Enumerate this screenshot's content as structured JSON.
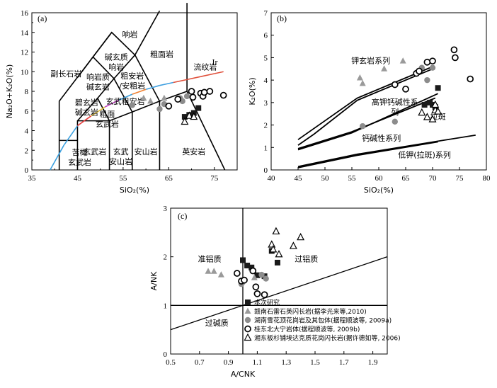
{
  "chart_data": [
    {
      "panel": "(a)",
      "type": "scatter",
      "xlabel": "SiO₂(%)",
      "ylabel": "Na₂O+K₂O(%)",
      "xlim": [
        35,
        80
      ],
      "ylim": [
        0,
        16
      ],
      "xticks": [
        "35",
        "45",
        "55",
        "65",
        "75"
      ],
      "yticks": [
        "0",
        "2",
        "4",
        "6",
        "8",
        "10",
        "12",
        "14",
        "16"
      ],
      "fields": [
        "响岩",
        "碱玄质响岩",
        "响岩质碱玄岩",
        "副长石岩",
        "粗面岩",
        "粗安岩/安粗岩",
        "流纹岩",
        "碧玄岩碱玄岩",
        "粗面玄武岩",
        "玄武粗安岩",
        "苦橄玄武岩",
        "玄武岩",
        "玄武安山岩",
        "安山岩",
        "英安岩"
      ],
      "line_label": "Ir",
      "series": [
        {
          "marker": "square",
          "points": [
            [
              68.5,
              5.4
            ],
            [
              69.5,
              5.6
            ],
            [
              70.2,
              5.5
            ],
            [
              70.5,
              5.8
            ],
            [
              71.5,
              6.3
            ]
          ]
        },
        {
          "marker": "triangle-gray",
          "points": [
            [
              59.5,
              7.3
            ],
            [
              61,
              7.0
            ],
            [
              64,
              7.3
            ]
          ]
        },
        {
          "marker": "circle-gray",
          "points": [
            [
              57,
              6.6
            ],
            [
              63,
              6.2
            ],
            [
              64,
              6.7
            ],
            [
              67.5,
              7.3
            ],
            [
              68,
              7.0
            ],
            [
              69,
              7.5
            ]
          ]
        },
        {
          "marker": "circle-open",
          "points": [
            [
              65,
              6.5
            ],
            [
              67,
              7.2
            ],
            [
              70,
              8.0
            ],
            [
              70.3,
              7.4
            ],
            [
              72,
              7.8
            ],
            [
              72.5,
              7.5
            ],
            [
              72.8,
              7.9
            ],
            [
              74,
              8.0
            ],
            [
              77,
              7.6
            ]
          ]
        },
        {
          "marker": "triangle-open",
          "points": [
            [
              68.5,
              4.9
            ],
            [
              69.5,
              5.5
            ],
            [
              70.5,
              5.4
            ]
          ]
        }
      ]
    },
    {
      "panel": "(b)",
      "type": "scatter",
      "xlabel": "SiO₂(%)",
      "ylabel": "K₂O(%)",
      "xlim": [
        40,
        80
      ],
      "ylim": [
        0,
        7
      ],
      "xticks": [
        "40",
        "45",
        "50",
        "55",
        "60",
        "65",
        "70",
        "75",
        "80"
      ],
      "yticks": [
        "0",
        "1",
        "2",
        "3",
        "4",
        "5",
        "6",
        "7"
      ],
      "fields": [
        "钾玄岩系列",
        "高钾钙碱性系列",
        "钙碱性系列",
        "低钾(拉斑)系列"
      ],
      "extra_label": "拉斑",
      "series": [
        {
          "marker": "square",
          "points": [
            [
              68.5,
              2.9
            ],
            [
              69.5,
              3.0
            ],
            [
              70,
              2.9
            ],
            [
              70.5,
              2.8
            ],
            [
              71,
              3.65
            ]
          ]
        },
        {
          "marker": "triangle-gray",
          "points": [
            [
              56.5,
              4.1
            ],
            [
              57,
              3.85
            ],
            [
              61,
              4.5
            ],
            [
              64.5,
              4.85
            ]
          ]
        },
        {
          "marker": "circle-gray",
          "points": [
            [
              57,
              1.95
            ],
            [
              63,
              2.15
            ],
            [
              68,
              4.55
            ],
            [
              69,
              4.0
            ],
            [
              70,
              4.55
            ]
          ]
        },
        {
          "marker": "circle-open",
          "points": [
            [
              63,
              3.8
            ],
            [
              65,
              3.6
            ],
            [
              67,
              4.3
            ],
            [
              67.5,
              4.4
            ],
            [
              69,
              4.8
            ],
            [
              70,
              4.85
            ],
            [
              74,
              5.35
            ],
            [
              74.2,
              5.0
            ],
            [
              77,
              4.05
            ]
          ]
        },
        {
          "marker": "triangle-open",
          "points": [
            [
              68,
              2.55
            ],
            [
              69,
              2.35
            ],
            [
              70,
              2.25
            ],
            [
              70.5,
              2.65
            ],
            [
              71,
              2.6
            ],
            [
              70.5,
              2.9
            ]
          ]
        }
      ]
    },
    {
      "panel": "(c)",
      "type": "scatter",
      "xlabel": "A/CNK",
      "ylabel": "A/NK",
      "xlim": [
        0.5,
        2.0
      ],
      "ylim": [
        0,
        3
      ],
      "xticks": [
        "0.5",
        "0.7",
        "0.9",
        "1.1",
        "1.3",
        "1.5",
        "1.7",
        "1.9"
      ],
      "yticks": [
        "0",
        "1",
        "2",
        "3"
      ],
      "fields": [
        "准铝质",
        "过铝质",
        "过碱质"
      ],
      "series": [
        {
          "marker": "square",
          "name": "本次研究",
          "points": [
            [
              1.0,
              1.93
            ],
            [
              1.03,
              1.82
            ],
            [
              1.06,
              1.78
            ],
            [
              1.1,
              1.62
            ],
            [
              1.15,
              1.6
            ],
            [
              1.2,
              2.12
            ],
            [
              1.24,
              1.88
            ]
          ]
        },
        {
          "marker": "triangle-gray",
          "name": "赣南石雷石英闪长岩(据李光来等,2010)",
          "points": [
            [
              0.76,
              1.7
            ],
            [
              0.8,
              1.7
            ],
            [
              0.85,
              1.63
            ],
            [
              1.08,
              1.57
            ]
          ]
        },
        {
          "marker": "circle-gray",
          "name": "湖南雪花顶花岗岩及其包体(据程顺波等, 2009a)",
          "points": [
            [
              0.99,
              1.44
            ],
            [
              1.0,
              1.48
            ],
            [
              1.13,
              1.63
            ],
            [
              1.16,
              1.55
            ]
          ]
        },
        {
          "marker": "circle-open",
          "name": "桂东北大宁岩体(据程顺波等, 2009b)",
          "points": [
            [
              0.96,
              1.66
            ],
            [
              0.99,
              1.5
            ],
            [
              1.01,
              1.52
            ],
            [
              1.07,
              1.71
            ],
            [
              1.09,
              1.38
            ],
            [
              1.1,
              1.24
            ],
            [
              1.15,
              1.22
            ]
          ]
        },
        {
          "marker": "triangle-open",
          "name": "湘东板杉铺埃达克质花岗闪长岩(据许德如等, 2006)",
          "points": [
            [
              1.2,
              2.25
            ],
            [
              1.21,
              2.15
            ],
            [
              1.23,
              2.52
            ],
            [
              1.25,
              2.05
            ],
            [
              1.35,
              2.22
            ],
            [
              1.4,
              2.4
            ]
          ]
        }
      ]
    }
  ]
}
